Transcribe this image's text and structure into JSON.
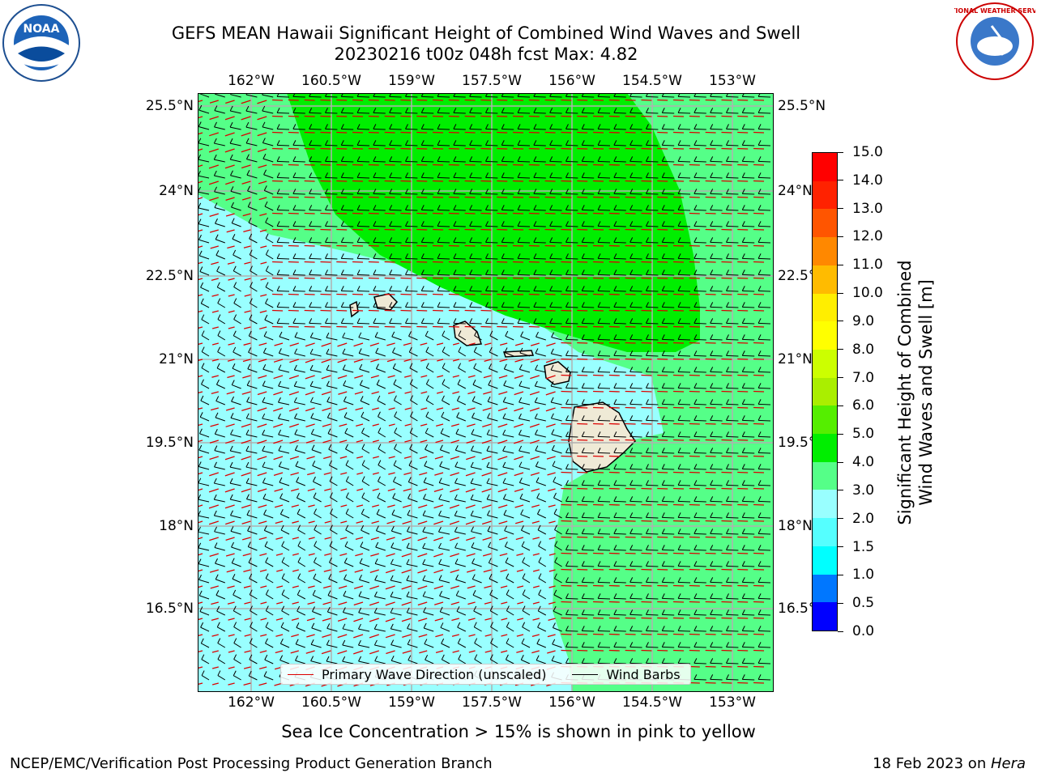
{
  "title": {
    "line1": "GEFS MEAN Hawaii Significant Height of Combined Wind Waves and Swell",
    "line2": "20230216 t00z 048h fcst   Max: 4.82"
  },
  "map": {
    "lon_ticks": [
      "162°W",
      "160.5°W",
      "159°W",
      "157.5°W",
      "156°W",
      "154.5°W",
      "153°W"
    ],
    "lat_ticks_left": [
      "25.5°N",
      "24°N",
      "22.5°N",
      "21°N",
      "19.5°N",
      "18°N",
      "16.5°N"
    ],
    "lat_ticks_right": [
      "25.5°N",
      "24°N",
      "22.5°N",
      "21°N",
      "19.5°N",
      "18°N",
      "16.5°N"
    ],
    "colors": {
      "band_2_3": "#99ffff",
      "band_3_4": "#55ff88",
      "band_4_5": "#00ee00",
      "land": "#efead6"
    }
  },
  "colorbar": {
    "ticks": [
      "0.0",
      "0.5",
      "1.0",
      "1.5",
      "2.0",
      "3.0",
      "4.0",
      "5.0",
      "6.0",
      "7.0",
      "8.0",
      "9.0",
      "10.0",
      "11.0",
      "12.0",
      "13.0",
      "14.0",
      "15.0"
    ],
    "colors": [
      "#0000ff",
      "#0077ff",
      "#00ffff",
      "#55ffff",
      "#99ffff",
      "#55ff88",
      "#00ee00",
      "#55ee00",
      "#aaee00",
      "#ccff00",
      "#ffff00",
      "#ffee00",
      "#ffbb00",
      "#ff8800",
      "#ff5500",
      "#ff2200",
      "#ff0000"
    ],
    "label_line1": "Significant Height of Combined",
    "label_line2": "Wind Waves and Swell [m]"
  },
  "legend": {
    "wave_dir_label": "Primary Wave Direction (unscaled)",
    "wave_dir_color": "#dd0000",
    "wind_barb_label": "Wind Barbs",
    "wind_barb_color": "#000000"
  },
  "notes": {
    "sea_ice": "Sea Ice Concentration > 15% is shown in pink to yellow",
    "branch": "NCEP/EMC/Verification Post Processing Product Generation Branch",
    "date": "18 Feb 2023 on ",
    "host": "Hera"
  },
  "logos": {
    "left_text": "NOAA",
    "right_text": "NATIONAL WEATHER SERVICE"
  }
}
